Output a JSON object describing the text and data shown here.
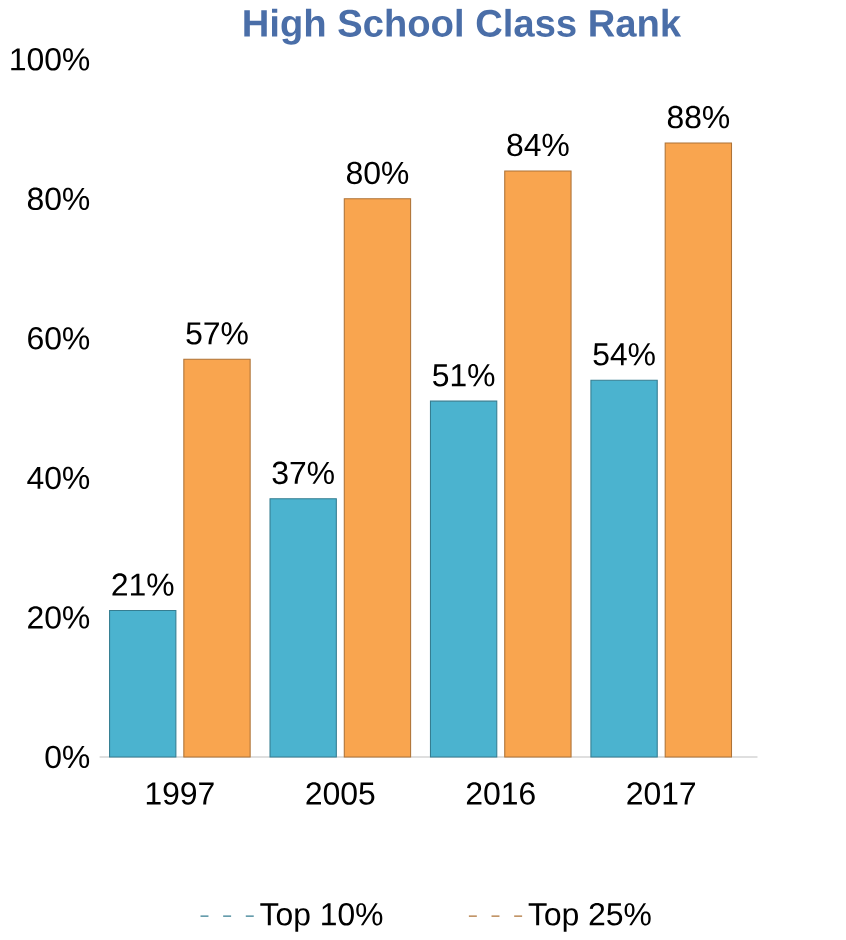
{
  "chart_data": {
    "type": "bar",
    "title": "High School Class Rank",
    "categories": [
      "1997",
      "2005",
      "2016",
      "2017"
    ],
    "series": [
      {
        "name": "Top 10%",
        "color": "#4bb3cf",
        "values": [
          21,
          37,
          51,
          54
        ],
        "value_labels": [
          "21%",
          "37%",
          "51%",
          "54%"
        ]
      },
      {
        "name": "Top 25%",
        "color": "#f9a54f",
        "values": [
          57,
          80,
          84,
          88
        ],
        "value_labels": [
          "57%",
          "80%",
          "84%",
          "88%"
        ]
      }
    ],
    "ylim": [
      0,
      100
    ],
    "yticks": [
      {
        "value": 0,
        "label": "0%"
      },
      {
        "value": 20,
        "label": "20%"
      },
      {
        "value": 40,
        "label": "40%"
      },
      {
        "value": 60,
        "label": "60%"
      },
      {
        "value": 80,
        "label": "80%"
      },
      {
        "value": 100,
        "label": "100%"
      }
    ],
    "legend": "bottom"
  }
}
